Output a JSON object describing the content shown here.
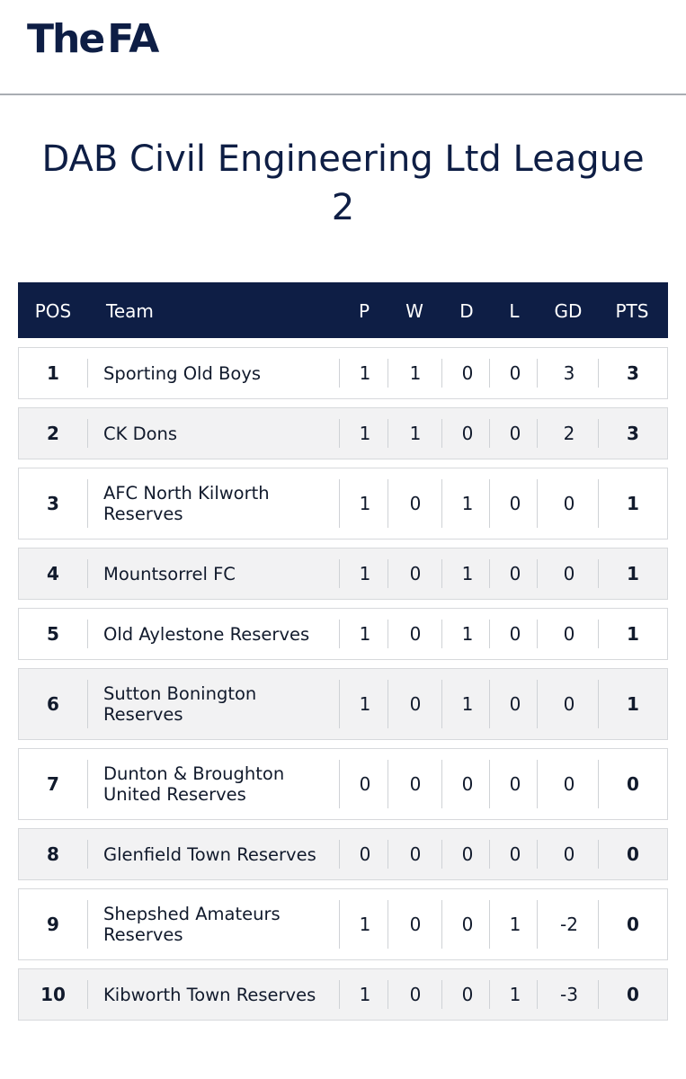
{
  "brand": {
    "part1": "The",
    "part2": "FA"
  },
  "title_line1": "DAB Civil Engineering Ltd League",
  "title_line2": "2",
  "columns": {
    "pos": "POS",
    "team": "Team",
    "p": "P",
    "w": "W",
    "d": "D",
    "l": "L",
    "gd": "GD",
    "pts": "PTS"
  },
  "rows": [
    {
      "pos": "1",
      "team": "Sporting Old Boys",
      "p": "1",
      "w": "1",
      "d": "0",
      "l": "0",
      "gd": "3",
      "pts": "3"
    },
    {
      "pos": "2",
      "team": "CK Dons",
      "p": "1",
      "w": "1",
      "d": "0",
      "l": "0",
      "gd": "2",
      "pts": "3"
    },
    {
      "pos": "3",
      "team": "AFC North Kilworth Reserves",
      "p": "1",
      "w": "0",
      "d": "1",
      "l": "0",
      "gd": "0",
      "pts": "1"
    },
    {
      "pos": "4",
      "team": "Mountsorrel FC",
      "p": "1",
      "w": "0",
      "d": "1",
      "l": "0",
      "gd": "0",
      "pts": "1"
    },
    {
      "pos": "5",
      "team": "Old Aylestone Reserves",
      "p": "1",
      "w": "0",
      "d": "1",
      "l": "0",
      "gd": "0",
      "pts": "1"
    },
    {
      "pos": "6",
      "team": "Sutton Bonington Reserves",
      "p": "1",
      "w": "0",
      "d": "1",
      "l": "0",
      "gd": "0",
      "pts": "1"
    },
    {
      "pos": "7",
      "team": "Dunton & Broughton United Reserves",
      "p": "0",
      "w": "0",
      "d": "0",
      "l": "0",
      "gd": "0",
      "pts": "0"
    },
    {
      "pos": "8",
      "team": "Glenfield Town Reserves",
      "p": "0",
      "w": "0",
      "d": "0",
      "l": "0",
      "gd": "0",
      "pts": "0"
    },
    {
      "pos": "9",
      "team": "Shepshed Amateurs Reserves",
      "p": "1",
      "w": "0",
      "d": "0",
      "l": "1",
      "gd": "-2",
      "pts": "0"
    },
    {
      "pos": "10",
      "team": "Kibworth Town Reserves",
      "p": "1",
      "w": "0",
      "d": "0",
      "l": "1",
      "gd": "-3",
      "pts": "0"
    }
  ]
}
